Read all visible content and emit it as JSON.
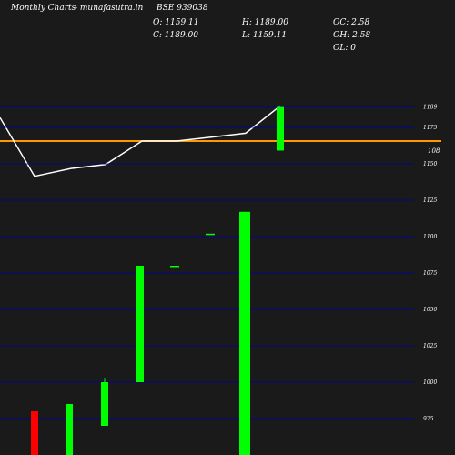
{
  "header": {
    "brand": "Monthly Charts",
    "site": "- munafasutra.in",
    "symbol": "BSE 939038",
    "open": "O: 1159.11",
    "close": "C: 1189.00",
    "high": "H: 1189.00",
    "low": "L: 1159.11",
    "oc": "OC: 2.58",
    "oh": "OH: 2.58",
    "ol": "OL: 0"
  },
  "colors": {
    "background": "#1a1a1a",
    "line": "#ffffff",
    "reference_line": "#ff9900",
    "grid": "#0000aa",
    "up": "#00ff00",
    "down": "#ff0000"
  },
  "chart_data": [
    {
      "type": "line",
      "label_right": "108",
      "reference_value": 108,
      "y_values": [
        114,
        99,
        101,
        102,
        108,
        108,
        109,
        110,
        117
      ]
    },
    {
      "type": "candlestick",
      "yticks": [
        975,
        1000,
        1025,
        1050,
        1075,
        1100,
        1125,
        1150,
        1175,
        1189
      ],
      "ylim": [
        950,
        1200
      ],
      "grid": true,
      "candles": [
        {
          "open": 980,
          "close": 950,
          "high": 980,
          "low": 950,
          "dir": "down"
        },
        {
          "open": 950,
          "close": 985,
          "high": 985,
          "low": 950,
          "dir": "up"
        },
        {
          "open": 970,
          "close": 1000,
          "high": 1003,
          "low": 970,
          "dir": "up"
        },
        {
          "open": 1000,
          "close": 1080,
          "high": 1080,
          "low": 1000,
          "dir": "up"
        },
        {
          "open": 1080,
          "close": 1080,
          "high": 1080,
          "low": 1080,
          "dir": "up"
        },
        {
          "open": 1102,
          "close": 1102,
          "high": 1102,
          "low": 1102,
          "dir": "up"
        },
        {
          "open": 950,
          "close": 1117,
          "high": 1117,
          "low": 950,
          "dir": "up"
        },
        {
          "open": 1159.11,
          "close": 1189,
          "high": 1189,
          "low": 1159.11,
          "dir": "up"
        }
      ]
    }
  ]
}
